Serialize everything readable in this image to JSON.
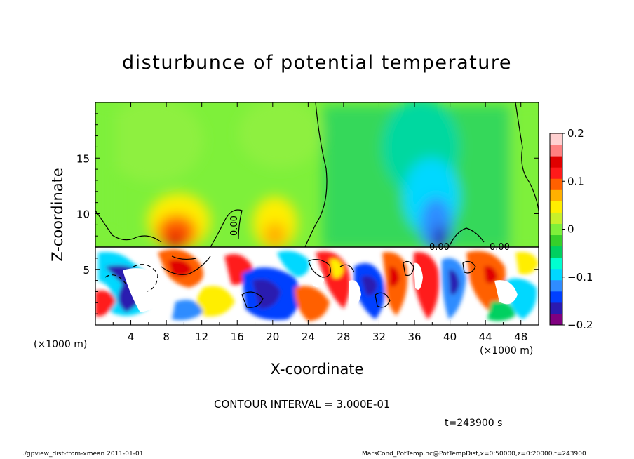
{
  "chart_data": {
    "type": "heatmap",
    "title": "disturbunce of potential temperature",
    "xlabel": "X-coordinate",
    "ylabel": "Z-coordinate",
    "x_unit_label": "(×1000 m)",
    "xlim": [
      0,
      50
    ],
    "ylim": [
      0,
      20
    ],
    "x_ticks": [
      4,
      8,
      12,
      16,
      20,
      24,
      28,
      32,
      36,
      40,
      44,
      48
    ],
    "y_ticks": [
      5,
      10,
      15
    ],
    "colorbar": {
      "range": [
        -0.2,
        0.2
      ],
      "tick_values": [
        0.2,
        0.1,
        0,
        -0.1,
        -0.2
      ],
      "tick_labels": [
        "0.2",
        "0.1",
        "0",
        "−0.1",
        "−0.2"
      ],
      "colors": [
        "#800080",
        "#2b1ab0",
        "#0040ff",
        "#2f8cff",
        "#00d8ff",
        "#00ffd0",
        "#00d060",
        "#36d02a",
        "#7ef03a",
        "#c8f02a",
        "#ffee00",
        "#ffb000",
        "#ff6000",
        "#ff1a1a",
        "#e00000",
        "#ff8080",
        "#ffd0d0"
      ]
    },
    "contour_interval_text": "CONTOUR INTERVAL = 3.000E-01",
    "contour_labels": [
      "0.00",
      "0.00",
      "0.00"
    ],
    "time_text": "t=243900 s",
    "footer_left": "./gpview_dist-from-xmean  2011-01-01",
    "footer_right": "MarsCond_PotTemp.nc@PotTempDist,x=0:50000,z=0:20000,t=243900",
    "background_color": "#36d02a"
  }
}
